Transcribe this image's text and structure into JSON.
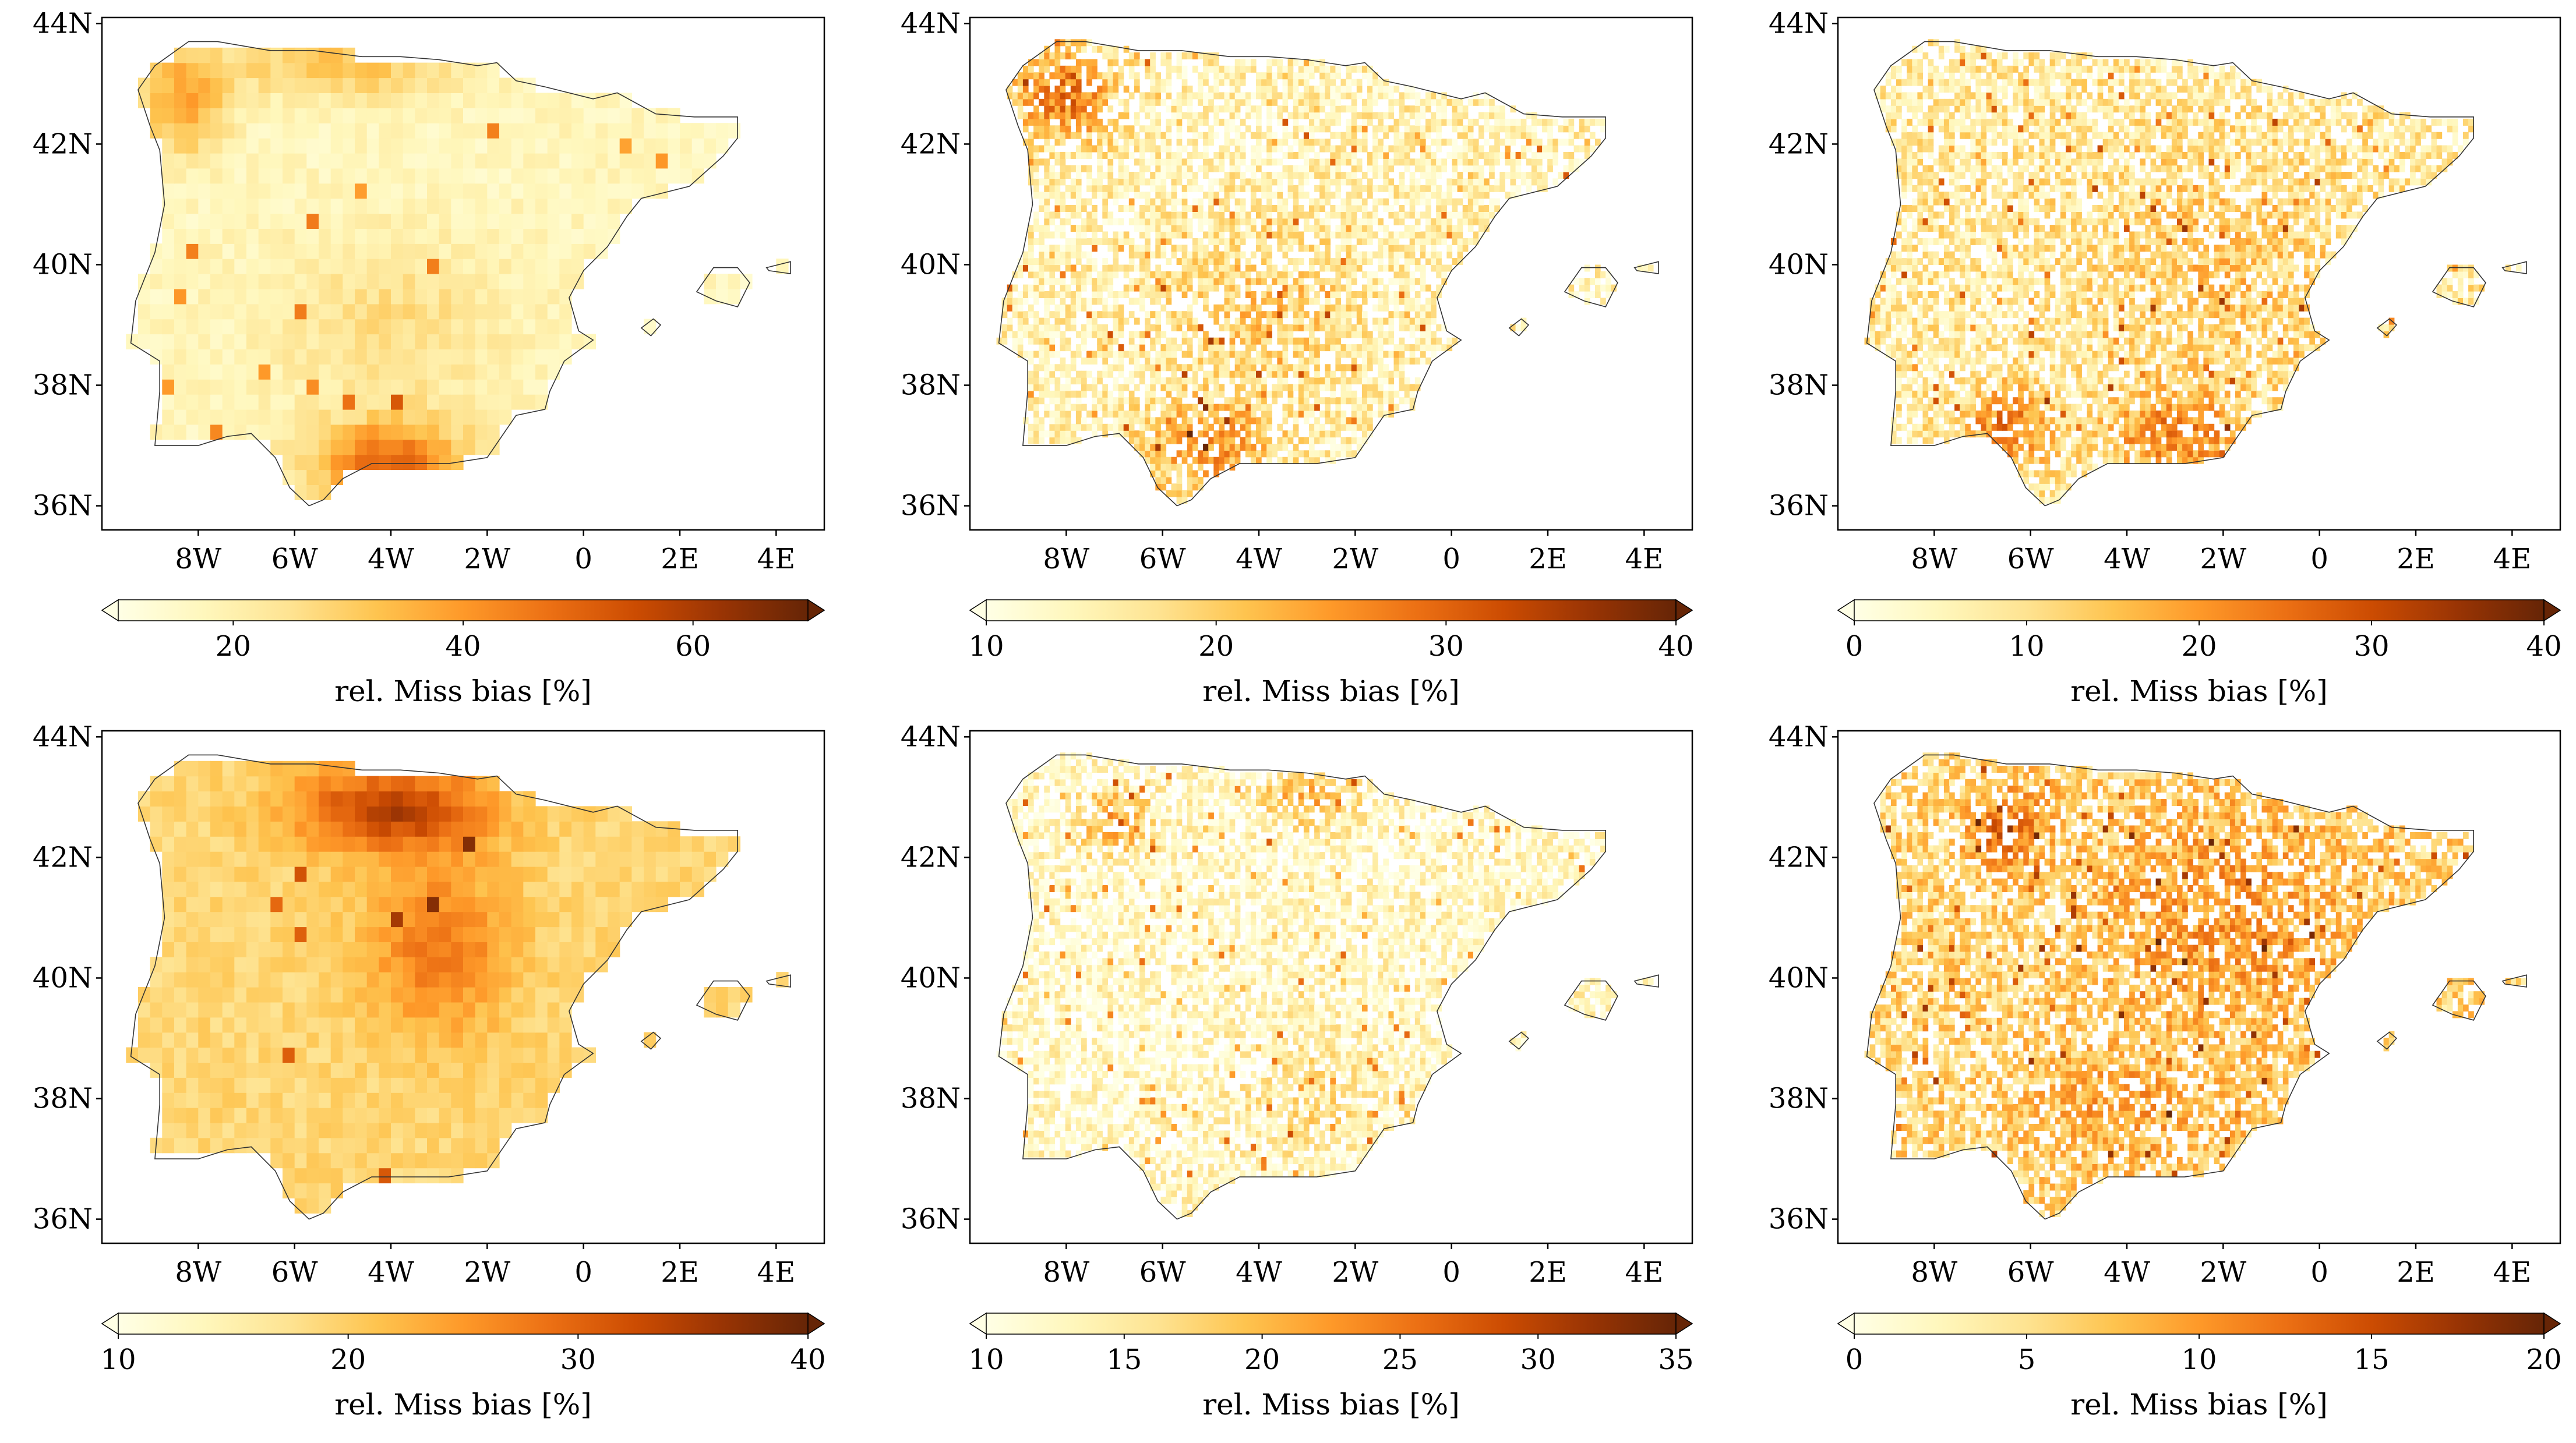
{
  "figure": {
    "panels": [
      {
        "id": "r1c1",
        "lat_ticks": [
          "36N",
          "38N",
          "40N",
          "42N",
          "44N"
        ],
        "lon_ticks": [
          "8W",
          "6W",
          "4W",
          "2W",
          "0",
          "2E",
          "4E"
        ],
        "pattern": "coarse",
        "colorbar": {
          "min": 10,
          "max": 70,
          "ticks": [
            "20",
            "40",
            "60"
          ],
          "tick_values": [
            20,
            40,
            60
          ],
          "label": "rel. Miss bias [%]"
        }
      },
      {
        "id": "r1c2",
        "lat_ticks": [
          "36N",
          "38N",
          "40N",
          "42N",
          "44N"
        ],
        "lon_ticks": [
          "8W",
          "6W",
          "4W",
          "2W",
          "0",
          "2E",
          "4E"
        ],
        "pattern": "fine",
        "colorbar": {
          "min": 10,
          "max": 40,
          "ticks": [
            "10",
            "20",
            "30",
            "40"
          ],
          "tick_values": [
            10,
            20,
            30,
            40
          ],
          "label": "rel. Miss bias [%]"
        }
      },
      {
        "id": "r1c3",
        "lat_ticks": [
          "36N",
          "38N",
          "40N",
          "42N",
          "44N"
        ],
        "lon_ticks": [
          "8W",
          "6W",
          "4W",
          "2W",
          "0",
          "2E",
          "4E"
        ],
        "pattern": "fine",
        "colorbar": {
          "min": 0,
          "max": 40,
          "ticks": [
            "0",
            "10",
            "20",
            "30",
            "40"
          ],
          "tick_values": [
            0,
            10,
            20,
            30,
            40
          ],
          "label": "rel. Miss bias [%]"
        }
      },
      {
        "id": "r2c1",
        "lat_ticks": [
          "36N",
          "38N",
          "40N",
          "42N",
          "44N"
        ],
        "lon_ticks": [
          "8W",
          "6W",
          "4W",
          "2W",
          "0",
          "2E",
          "4E"
        ],
        "pattern": "coarse",
        "colorbar": {
          "min": 10,
          "max": 40,
          "ticks": [
            "10",
            "20",
            "30",
            "40"
          ],
          "tick_values": [
            10,
            20,
            30,
            40
          ],
          "label": "rel. Miss bias [%]"
        }
      },
      {
        "id": "r2c2",
        "lat_ticks": [
          "36N",
          "38N",
          "40N",
          "42N",
          "44N"
        ],
        "lon_ticks": [
          "8W",
          "6W",
          "4W",
          "2W",
          "0",
          "2E",
          "4E"
        ],
        "pattern": "fine",
        "colorbar": {
          "min": 10,
          "max": 35,
          "ticks": [
            "10",
            "15",
            "20",
            "25",
            "30",
            "35"
          ],
          "tick_values": [
            10,
            15,
            20,
            25,
            30,
            35
          ],
          "label": "rel. Miss bias [%]"
        }
      },
      {
        "id": "r2c3",
        "lat_ticks": [
          "36N",
          "38N",
          "40N",
          "42N",
          "44N"
        ],
        "lon_ticks": [
          "8W",
          "6W",
          "4W",
          "2W",
          "0",
          "2E",
          "4E"
        ],
        "pattern": "fine",
        "colorbar": {
          "min": 0,
          "max": 20,
          "ticks": [
            "0",
            "5",
            "10",
            "15",
            "20"
          ],
          "tick_values": [
            0,
            5,
            10,
            15,
            20
          ],
          "label": "rel. Miss bias [%]"
        }
      }
    ],
    "colormap": [
      "#ffffe5",
      "#fff7bc",
      "#fee391",
      "#fec44f",
      "#fe9929",
      "#ec7014",
      "#cc4c02",
      "#993404",
      "#662506"
    ]
  },
  "chart_data": {
    "type": "heatmap",
    "description_axis": "longitude / latitude grid maps of the Iberian Peninsula",
    "lat_range": [
      35.6,
      44.1
    ],
    "lon_range": [
      -10,
      5
    ],
    "lat_ticks": [
      "36N",
      "38N",
      "40N",
      "42N",
      "44N"
    ],
    "lon_ticks": [
      "8W",
      "6W",
      "4W",
      "2W",
      "0",
      "2E",
      "4E"
    ],
    "colorbar_label": "rel. Miss bias [%]",
    "panels": [
      {
        "id": "r1c1",
        "colorbar_range": [
          10,
          70
        ],
        "colorbar_ticks": [
          20,
          40,
          60
        ]
      },
      {
        "id": "r1c2",
        "colorbar_range": [
          10,
          40
        ],
        "colorbar_ticks": [
          10,
          20,
          30,
          40
        ]
      },
      {
        "id": "r1c3",
        "colorbar_range": [
          0,
          40
        ],
        "colorbar_ticks": [
          0,
          10,
          20,
          30,
          40
        ]
      },
      {
        "id": "r2c1",
        "colorbar_range": [
          10,
          40
        ],
        "colorbar_ticks": [
          10,
          20,
          30,
          40
        ]
      },
      {
        "id": "r2c2",
        "colorbar_range": [
          10,
          35
        ],
        "colorbar_ticks": [
          10,
          15,
          20,
          25,
          30,
          35
        ]
      },
      {
        "id": "r2c3",
        "colorbar_range": [
          0,
          20
        ],
        "colorbar_ticks": [
          0,
          5,
          10,
          15,
          20
        ]
      }
    ]
  }
}
